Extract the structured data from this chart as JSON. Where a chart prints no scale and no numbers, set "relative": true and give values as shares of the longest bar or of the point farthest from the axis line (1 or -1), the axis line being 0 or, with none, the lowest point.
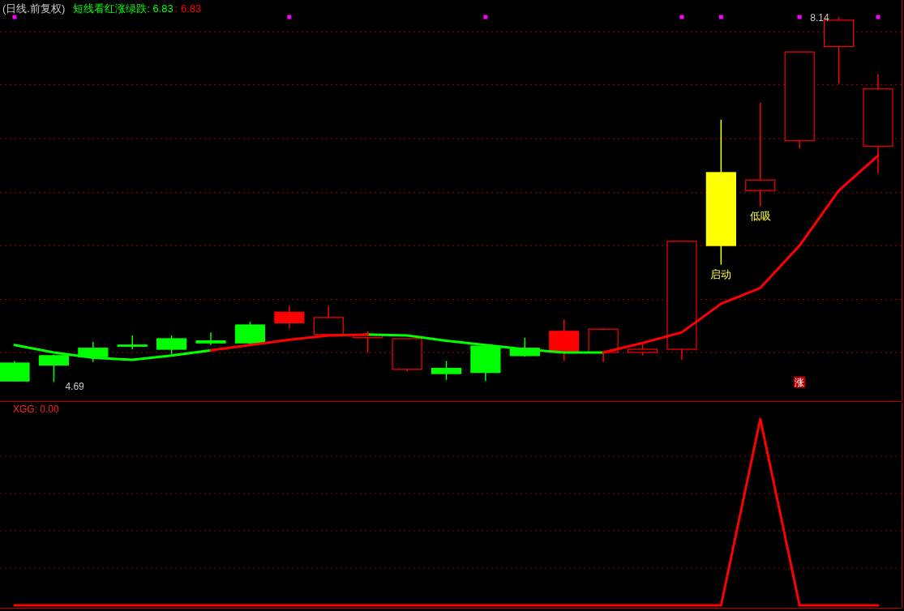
{
  "chart_data": [
    {
      "type": "candlestick",
      "title": "(日线.前复权)",
      "annotations": [
        "短线看红涨绿跌: 6.83",
        ": 6.83"
      ],
      "categories": [
        null,
        null,
        null,
        null,
        null,
        null,
        null,
        null,
        null,
        null,
        null,
        null,
        null,
        null,
        null,
        null,
        null,
        null,
        null,
        null,
        null,
        null,
        null
      ],
      "ref_lines": [
        {
          "axis": "y",
          "value": 8.0,
          "color": "#a00000",
          "line_style": "dotted"
        },
        {
          "axis": "y",
          "value": 7.5,
          "color": "#a00000",
          "line_style": "dotted"
        },
        {
          "axis": "y",
          "value": 6.99,
          "color": "#a00000",
          "line_style": "dotted"
        },
        {
          "axis": "y",
          "value": 6.48,
          "color": "#a00000",
          "line_style": "dotted"
        },
        {
          "axis": "y",
          "value": 5.98,
          "color": "#a00000",
          "line_style": "dotted"
        },
        {
          "axis": "y",
          "value": 5.47,
          "color": "#a00000",
          "line_style": "dotted"
        },
        {
          "axis": "y",
          "value": 4.97,
          "color": "#a00000",
          "line_style": "dotted"
        }
      ],
      "series": [
        {
          "type": "candlestick",
          "ohlc": [
            [
              4.87,
              4.89,
              4.7,
              4.7
            ],
            [
              4.94,
              4.95,
              4.69,
              4.85
            ],
            [
              5.01,
              5.07,
              4.88,
              4.93
            ],
            [
              5.04,
              5.13,
              5.0,
              5.03
            ],
            [
              5.1,
              5.13,
              4.95,
              5.0
            ],
            [
              5.08,
              5.16,
              5.04,
              5.06
            ],
            [
              5.23,
              5.26,
              5.04,
              5.06
            ],
            [
              5.35,
              5.41,
              5.2,
              5.25
            ],
            [
              5.14,
              5.41,
              5.14,
              5.3
            ],
            [
              5.11,
              5.17,
              4.97,
              5.13
            ],
            [
              4.81,
              5.1,
              4.79,
              5.1
            ],
            [
              4.82,
              4.89,
              4.71,
              4.77
            ],
            [
              5.03,
              5.03,
              4.7,
              4.78
            ],
            [
              5.01,
              5.11,
              4.93,
              4.94
            ],
            [
              5.17,
              5.28,
              4.89,
              4.97
            ],
            [
              4.97,
              5.2,
              4.88,
              5.19
            ],
            [
              4.97,
              5.06,
              4.94,
              5.0
            ],
            [
              5.0,
              6.02,
              4.9,
              6.02
            ],
            [
              5.98,
              7.17,
              5.8,
              6.67
            ],
            [
              6.5,
              7.33,
              6.35,
              6.6
            ],
            [
              6.97,
              7.81,
              6.9,
              7.81
            ],
            [
              7.86,
              8.14,
              7.51,
              8.11
            ],
            [
              6.92,
              7.6,
              6.66,
              7.46
            ]
          ],
          "colors": [
            "#00ff00",
            "#00ff00",
            "#00ff00",
            "#00ff00",
            "#00ff00",
            "#00ff00",
            "#00ff00",
            "#ff0000",
            "#ff0000",
            "#ff0000",
            "#ff0000",
            "#00ff00",
            "#00ff00",
            "#00ff00",
            "#ff0000",
            "#ff0000",
            "#ff0000",
            "#ff0000",
            "#ffff00",
            "#ff0000",
            "#ff0000",
            "#ff0000",
            "#ff0000"
          ],
          "value_labels": [
            null,
            "4.69",
            null,
            null,
            null,
            null,
            null,
            null,
            null,
            null,
            null,
            null,
            null,
            null,
            null,
            null,
            null,
            null,
            "启动",
            "低吸",
            null,
            "8.14",
            null
          ]
        },
        {
          "type": "line",
          "color": "#00ff00",
          "values": [
            5.04,
            4.97,
            4.92,
            4.9,
            4.94,
            4.99,
            null,
            null,
            null,
            5.14,
            5.13,
            5.08,
            5.04,
            5.0,
            4.97,
            4.97,
            null,
            null,
            null,
            null,
            null,
            null,
            null
          ]
        },
        {
          "type": "line",
          "color": "#ff0000",
          "values": [
            null,
            null,
            null,
            null,
            null,
            4.99,
            5.04,
            5.09,
            5.13,
            5.14,
            null,
            null,
            null,
            null,
            null,
            4.97,
            5.06,
            5.16,
            5.43,
            5.58,
            5.98,
            6.5,
            6.83
          ]
        },
        {
          "type": "scatter",
          "color": "#ff00ff",
          "marker": "square",
          "values": [
            8.14,
            null,
            null,
            null,
            null,
            null,
            null,
            8.14,
            null,
            null,
            null,
            null,
            8.14,
            null,
            null,
            null,
            null,
            8.14,
            8.14,
            null,
            8.14,
            null,
            8.14
          ]
        },
        {
          "type": "scatter",
          "color": "#c00000",
          "marker": "square",
          "values": [
            null,
            null,
            null,
            null,
            null,
            null,
            null,
            null,
            null,
            null,
            null,
            null,
            null,
            null,
            null,
            null,
            null,
            null,
            null,
            null,
            4.69,
            null,
            null
          ],
          "value_labels": [
            null,
            null,
            null,
            null,
            null,
            null,
            null,
            null,
            null,
            null,
            null,
            null,
            null,
            null,
            null,
            null,
            null,
            null,
            null,
            null,
            "涨",
            null,
            null
          ]
        }
      ]
    },
    {
      "type": "line",
      "title": "XGG: 0.00",
      "relative": true,
      "categories": [
        null,
        null,
        null,
        null,
        null,
        null,
        null,
        null,
        null,
        null,
        null,
        null,
        null,
        null,
        null,
        null,
        null,
        null,
        null,
        null,
        null,
        null,
        null
      ],
      "ref_lines": [
        {
          "axis": "y",
          "value": 0.2,
          "color": "#800000",
          "line_style": "dotted"
        },
        {
          "axis": "y",
          "value": 0.4,
          "color": "#800000",
          "line_style": "dotted"
        },
        {
          "axis": "y",
          "value": 0.6,
          "color": "#800000",
          "line_style": "dotted"
        },
        {
          "axis": "y",
          "value": 0.8,
          "color": "#800000",
          "line_style": "dotted"
        }
      ],
      "series": [
        {
          "color": "#ff0000",
          "values": [
            0,
            0,
            0,
            0,
            0,
            0,
            0,
            0,
            0,
            0,
            0,
            0,
            0,
            0,
            0,
            0,
            0,
            0,
            0,
            1,
            0,
            0,
            0
          ]
        }
      ]
    }
  ]
}
